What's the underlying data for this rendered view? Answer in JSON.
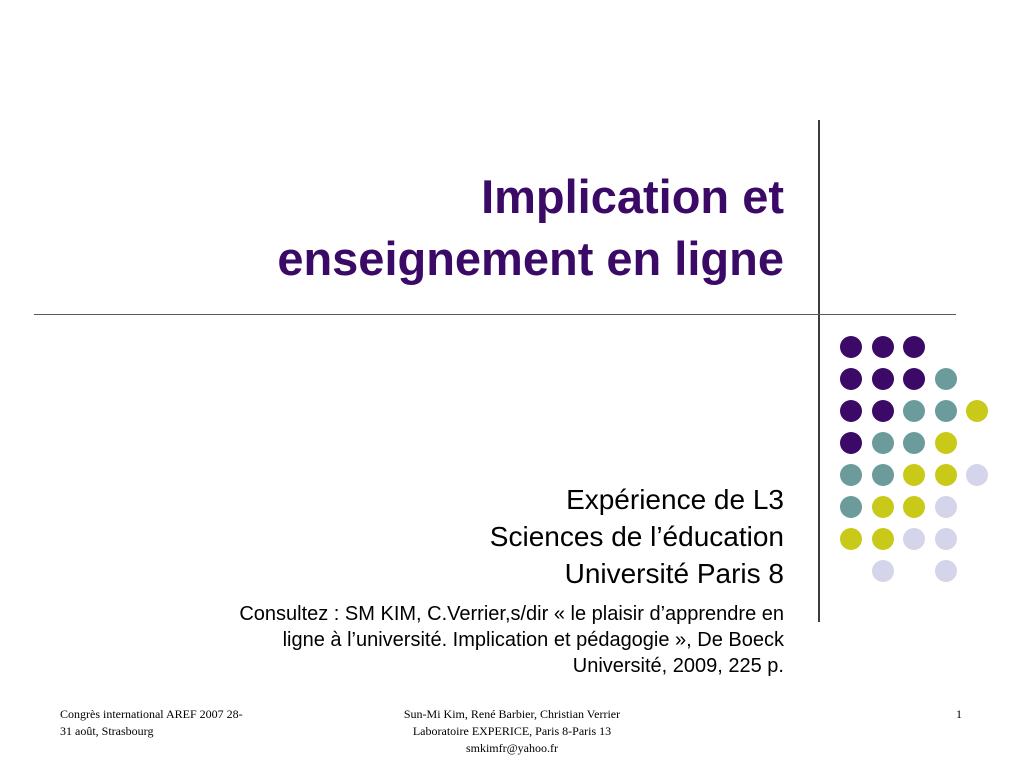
{
  "slide": {
    "title_lines": [
      "Implication et",
      "enseignement en ligne"
    ],
    "subtitle_lines": [
      "Expérience de L3",
      "Sciences de l’éducation",
      "Université Paris 8"
    ],
    "reference_lines": [
      "Consultez : SM KIM, C.Verrier,s/dir « le plaisir d’apprendre en",
      "ligne à l’université. Implication et pédagogie », De Boeck",
      "Université, 2009, 225 p."
    ]
  },
  "footer": {
    "left_lines": [
      "Congrès international AREF 2007 28-",
      "31 août, Strasbourg"
    ],
    "center_lines": [
      "Sun-Mi Kim, René Barbier, Christian Verrier",
      "Laboratoire EXPERICE, Paris 8-Paris 13",
      "smkimfr@yahoo.fr"
    ],
    "page_number": "1"
  },
  "colors": {
    "title": "#3a0a66",
    "purple": "#3a0a66",
    "teal": "#6b9b9b",
    "yellow": "#c9c91a",
    "lavender": "#d4d4ea"
  },
  "dot_grid": {
    "rows": [
      [
        "purple",
        "purple",
        "purple",
        "",
        ""
      ],
      [
        "purple",
        "purple",
        "purple",
        "teal",
        ""
      ],
      [
        "purple",
        "purple",
        "teal",
        "teal",
        "yellow"
      ],
      [
        "purple",
        "teal",
        "teal",
        "yellow",
        ""
      ],
      [
        "teal",
        "teal",
        "yellow",
        "yellow",
        "lavender"
      ],
      [
        "teal",
        "yellow",
        "yellow",
        "lavender",
        ""
      ],
      [
        "yellow",
        "yellow",
        "lavender",
        "lavender",
        ""
      ],
      [
        "",
        "lavender",
        "",
        "lavender",
        ""
      ]
    ]
  }
}
